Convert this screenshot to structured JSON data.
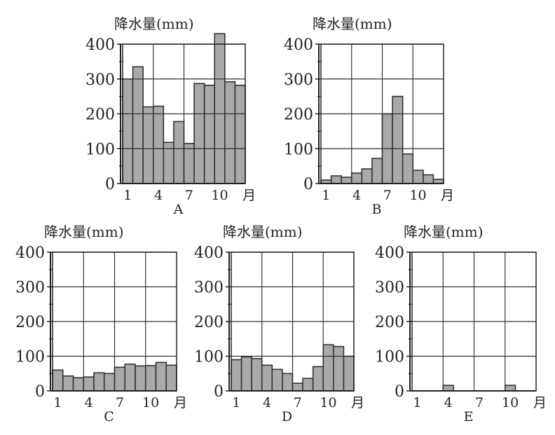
{
  "chart_data": [
    {
      "type": "bar",
      "id": "A",
      "label": "A",
      "title": "降水量(mm)",
      "ylabel": "降水量(mm)",
      "xlabel": "月",
      "x": [
        1,
        2,
        3,
        4,
        5,
        6,
        7,
        8,
        9,
        10,
        11,
        12
      ],
      "values": [
        300,
        335,
        220,
        222,
        118,
        178,
        115,
        287,
        282,
        430,
        292,
        282
      ],
      "ylim": [
        0,
        400
      ],
      "yticks": [
        "0",
        "100",
        "200",
        "300",
        "400"
      ],
      "xticks": [
        "1",
        "4",
        "7",
        "10"
      ],
      "x_unit": "月"
    },
    {
      "type": "bar",
      "id": "B",
      "label": "B",
      "title": "降水量(mm)",
      "ylabel": "降水量(mm)",
      "xlabel": "月",
      "x": [
        1,
        2,
        3,
        4,
        5,
        6,
        7,
        8,
        9,
        10,
        11,
        12
      ],
      "values": [
        10,
        22,
        18,
        30,
        42,
        72,
        200,
        250,
        85,
        38,
        25,
        12
      ],
      "ylim": [
        0,
        400
      ],
      "yticks": [
        "0",
        "100",
        "200",
        "300",
        "400"
      ],
      "xticks": [
        "1",
        "4",
        "7",
        "10"
      ],
      "x_unit": "月"
    },
    {
      "type": "bar",
      "id": "C",
      "label": "C",
      "title": "降水量(mm)",
      "ylabel": "降水量(mm)",
      "xlabel": "月",
      "x": [
        1,
        2,
        3,
        4,
        5,
        6,
        7,
        8,
        9,
        10,
        11,
        12
      ],
      "values": [
        60,
        43,
        38,
        40,
        52,
        50,
        68,
        77,
        72,
        73,
        82,
        74
      ],
      "ylim": [
        0,
        400
      ],
      "yticks": [
        "0",
        "100",
        "200",
        "300",
        "400"
      ],
      "xticks": [
        "1",
        "4",
        "7",
        "10"
      ],
      "x_unit": "月"
    },
    {
      "type": "bar",
      "id": "D",
      "label": "D",
      "title": "降水量(mm)",
      "ylabel": "降水量(mm)",
      "xlabel": "月",
      "x": [
        1,
        2,
        3,
        4,
        5,
        6,
        7,
        8,
        9,
        10,
        11,
        12
      ],
      "values": [
        90,
        98,
        93,
        74,
        62,
        50,
        22,
        36,
        70,
        133,
        128,
        100
      ],
      "ylim": [
        0,
        400
      ],
      "yticks": [
        "0",
        "100",
        "200",
        "300",
        "400"
      ],
      "xticks": [
        "1",
        "4",
        "7",
        "10"
      ],
      "x_unit": "月"
    },
    {
      "type": "bar",
      "id": "E",
      "label": "E",
      "title": "降水量(mm)",
      "ylabel": "降水量(mm)",
      "xlabel": "月",
      "x": [
        1,
        2,
        3,
        4,
        5,
        6,
        7,
        8,
        9,
        10,
        11,
        12
      ],
      "values": [
        0,
        0,
        0,
        16,
        0,
        0,
        0,
        0,
        0,
        16,
        0,
        0
      ],
      "ylim": [
        0,
        400
      ],
      "yticks": [
        "0",
        "100",
        "200",
        "300",
        "400"
      ],
      "xticks": [
        "1",
        "4",
        "7",
        "10"
      ],
      "x_unit": "月"
    }
  ],
  "colors": {
    "bar_fill": "#a9a9a9",
    "bar_stroke": "#333333",
    "grid": "#333333"
  }
}
